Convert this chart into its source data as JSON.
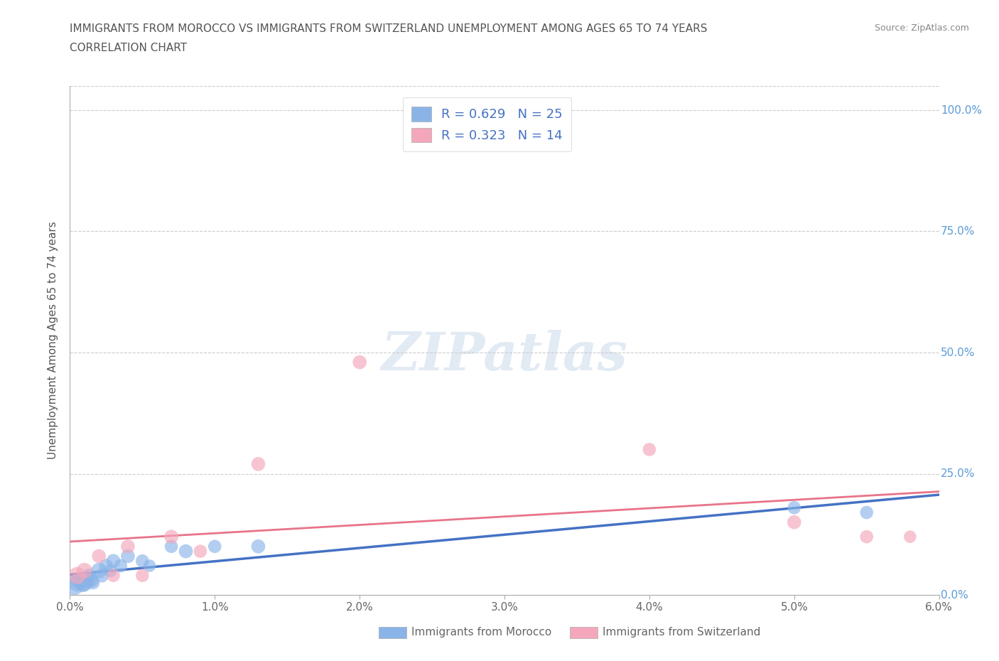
{
  "title_line1": "IMMIGRANTS FROM MOROCCO VS IMMIGRANTS FROM SWITZERLAND UNEMPLOYMENT AMONG AGES 65 TO 74 YEARS",
  "title_line2": "CORRELATION CHART",
  "source_text": "Source: ZipAtlas.com",
  "ylabel": "Unemployment Among Ages 65 to 74 years",
  "xlim": [
    0.0,
    0.06
  ],
  "ylim": [
    0.0,
    1.05
  ],
  "xticks": [
    0.0,
    0.01,
    0.02,
    0.03,
    0.04,
    0.05,
    0.06
  ],
  "xticklabels": [
    "0.0%",
    "1.0%",
    "2.0%",
    "3.0%",
    "4.0%",
    "5.0%",
    "6.0%"
  ],
  "ytick_positions": [
    0.0,
    0.25,
    0.5,
    0.75,
    1.0
  ],
  "ytick_labels_right": [
    "0.0%",
    "25.0%",
    "50.0%",
    "75.0%",
    "100.0%"
  ],
  "morocco_color": "#8ab4e8",
  "morocco_line_color": "#4472c4",
  "switzerland_color": "#f4a7bb",
  "switzerland_line_color": "#e8748a",
  "morocco_R": 0.629,
  "morocco_N": 25,
  "switzerland_R": 0.323,
  "switzerland_N": 14,
  "watermark": "ZIPatlas",
  "legend_label_morocco": "Immigrants from Morocco",
  "legend_label_switzerland": "Immigrants from Switzerland",
  "morocco_x": [
    0.0003,
    0.0005,
    0.0006,
    0.0008,
    0.0009,
    0.001,
    0.0012,
    0.0013,
    0.0015,
    0.0016,
    0.002,
    0.0022,
    0.0025,
    0.0028,
    0.003,
    0.0035,
    0.004,
    0.005,
    0.0055,
    0.007,
    0.008,
    0.01,
    0.013,
    0.05,
    0.055
  ],
  "morocco_y": [
    0.02,
    0.025,
    0.03,
    0.025,
    0.02,
    0.025,
    0.03,
    0.04,
    0.03,
    0.025,
    0.05,
    0.04,
    0.06,
    0.05,
    0.07,
    0.06,
    0.08,
    0.07,
    0.06,
    0.1,
    0.09,
    0.1,
    0.1,
    0.18,
    0.17
  ],
  "morocco_size": [
    400,
    300,
    250,
    200,
    200,
    300,
    250,
    200,
    200,
    180,
    250,
    200,
    200,
    180,
    200,
    180,
    200,
    180,
    160,
    180,
    200,
    180,
    200,
    180,
    180
  ],
  "switzerland_x": [
    0.0005,
    0.001,
    0.002,
    0.003,
    0.004,
    0.005,
    0.007,
    0.009,
    0.013,
    0.02,
    0.04,
    0.05,
    0.055,
    0.058
  ],
  "switzerland_y": [
    0.04,
    0.05,
    0.08,
    0.04,
    0.1,
    0.04,
    0.12,
    0.09,
    0.27,
    0.48,
    0.3,
    0.15,
    0.12,
    0.12
  ],
  "switzerland_size": [
    300,
    250,
    200,
    180,
    200,
    180,
    200,
    180,
    200,
    200,
    180,
    200,
    180,
    160
  ],
  "grid_color": "#cccccc",
  "background_color": "#ffffff",
  "title_color": "#555555",
  "axis_label_color": "#555555",
  "tick_color_right": "#5b9bd5",
  "tick_color_left": "#666666",
  "legend_text_color": "#4472c4"
}
